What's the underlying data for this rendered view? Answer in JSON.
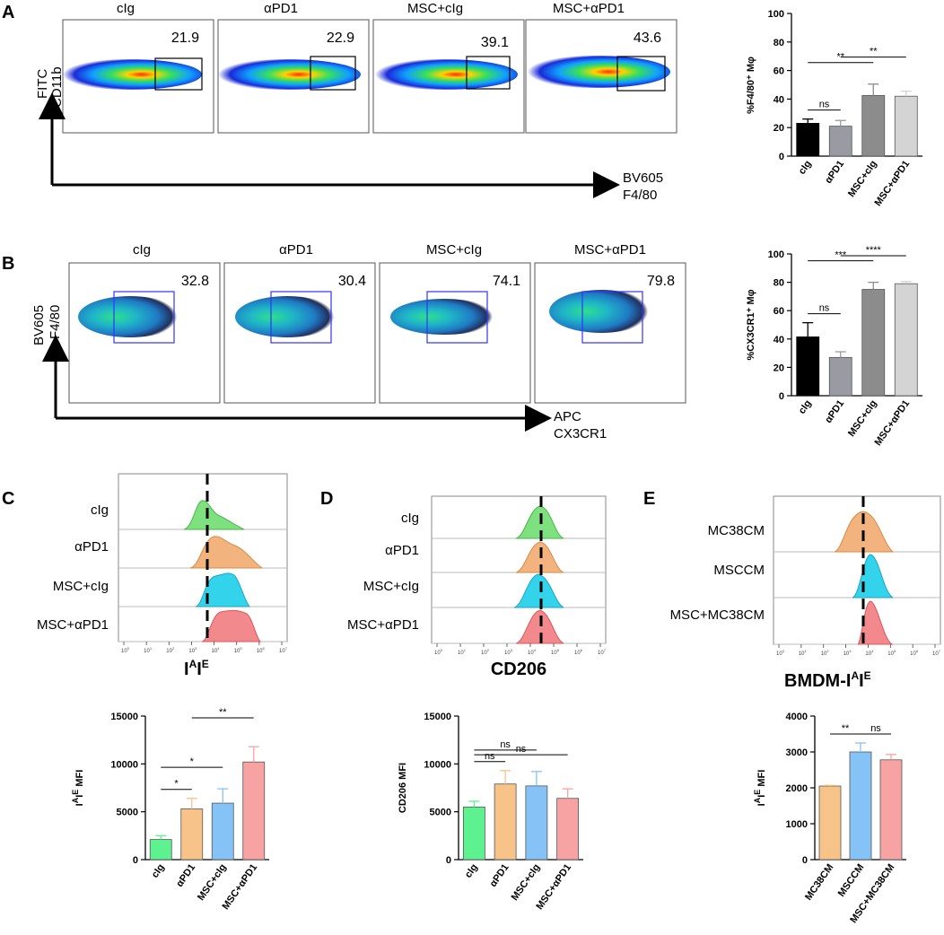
{
  "panel_labels": [
    "A",
    "B",
    "C",
    "D",
    "E"
  ],
  "colors": {
    "black": "#000000",
    "dark_gray": "#8c8c8c",
    "mid_gray": "#9a9aa3",
    "light_gray": "#d4d4d4",
    "green": "#5df28f",
    "orange": "#f8c389",
    "blue": "#85c3f7",
    "red": "#f7a3a3",
    "hist_green": "#7ee07e",
    "hist_orange": "#f2b37e",
    "hist_cyan": "#33d3ec",
    "hist_red": "#f2898c",
    "gate_A": "#000000",
    "gate_B": "#3333ff"
  },
  "flow_A": {
    "titles": [
      "cIg",
      "αPD1",
      "MSC+cIg",
      "MSC+αPD1"
    ],
    "percentages": [
      "21.9",
      "22.9",
      "39.1",
      "43.6"
    ],
    "y_axis": [
      "FITC",
      "CD11b"
    ],
    "x_axis": [
      "BV605",
      "F4/80"
    ]
  },
  "flow_B": {
    "titles": [
      "cIg",
      "αPD1",
      "MSC+cIg",
      "MSC+αPD1"
    ],
    "percentages": [
      "32.8",
      "30.4",
      "74.1",
      "79.8"
    ],
    "y_axis": [
      "BV605",
      "F4/80"
    ],
    "x_axis": [
      "APC",
      "CX3CR1"
    ]
  },
  "hist_C": {
    "rows": [
      "cIg",
      "αPD1",
      "MSC+cIg",
      "MSC+αPD1"
    ],
    "x_label": "I",
    "x_label_sup": "A",
    "x_label_mid": "I",
    "x_label_sup2": "E",
    "x_ticks": [
      "10",
      "10",
      "10",
      "10",
      "10",
      "10",
      "10",
      "10"
    ],
    "x_tick_exps": [
      "0",
      "1",
      "2",
      "3",
      "4",
      "5",
      "6",
      "7"
    ]
  },
  "hist_D": {
    "rows": [
      "cIg",
      "αPD1",
      "MSC+cIg",
      "MSC+αPD1"
    ],
    "x_label": "CD206",
    "x_ticks": [
      "10",
      "10",
      "10",
      "10",
      "10",
      "10",
      "10",
      "10"
    ],
    "x_tick_exps": [
      "0",
      "1",
      "2",
      "3",
      "4",
      "5",
      "6",
      "7"
    ]
  },
  "hist_E": {
    "rows": [
      "MC38CM",
      "MSCCM",
      "MSC+MC38CM"
    ],
    "x_label": "BMDM-I",
    "x_label_sup": "A",
    "x_label_mid": "I",
    "x_label_sup2": "E",
    "x_ticks": [
      "10",
      "10",
      "10",
      "10",
      "10",
      "10",
      "10",
      "10"
    ],
    "x_tick_exps": [
      "0",
      "1",
      "2",
      "3",
      "4",
      "5",
      "6",
      "7"
    ]
  },
  "chart_data": [
    {
      "id": "A_bar",
      "type": "bar",
      "title": "",
      "ylabel": "%F4/80⁺ Mφ",
      "categories": [
        "cIg",
        "αPD1",
        "MSC+cIg",
        "MSC+αPD1"
      ],
      "values": [
        23,
        21,
        42.5,
        42
      ],
      "errors": [
        3,
        4,
        8,
        3.5
      ],
      "ylim": [
        0,
        100
      ],
      "yticks": [
        0,
        20,
        40,
        60,
        80,
        100
      ],
      "colors": [
        "#000000",
        "#9a9aa3",
        "#8c8c8c",
        "#d4d4d4"
      ],
      "significance": [
        {
          "from": 0,
          "to": 1,
          "label": "ns",
          "level": 1
        },
        {
          "from": 0,
          "to": 2,
          "label": "**",
          "level": 2
        },
        {
          "from": 1,
          "to": 3,
          "label": "**",
          "level": 3
        }
      ]
    },
    {
      "id": "B_bar",
      "type": "bar",
      "title": "",
      "ylabel": "%CX3CR1⁺ Mφ",
      "categories": [
        "cIg",
        "αPD1",
        "MSC+cIg",
        "MSC+αPD1"
      ],
      "values": [
        41.5,
        27,
        75,
        79
      ],
      "errors": [
        10,
        4,
        5,
        1.5
      ],
      "ylim": [
        0,
        100
      ],
      "yticks": [
        0,
        20,
        40,
        60,
        80,
        100
      ],
      "colors": [
        "#000000",
        "#9a9aa3",
        "#8c8c8c",
        "#d4d4d4"
      ],
      "significance": [
        {
          "from": 0,
          "to": 1,
          "label": "ns",
          "level": 1
        },
        {
          "from": 0,
          "to": 2,
          "label": "***",
          "level": 2
        },
        {
          "from": 1,
          "to": 3,
          "label": "****",
          "level": 3
        }
      ]
    },
    {
      "id": "C_bar",
      "type": "bar",
      "title": "",
      "ylabel": "IAIE MFI",
      "categories": [
        "cIg",
        "αPD1",
        "MSC+cIg",
        "MSC+αPD1"
      ],
      "values": [
        2100,
        5300,
        5900,
        10200
      ],
      "errors": [
        400,
        1100,
        1500,
        1600
      ],
      "ylim": [
        0,
        15000
      ],
      "yticks": [
        0,
        5000,
        10000,
        15000
      ],
      "colors": [
        "#5df28f",
        "#f8c389",
        "#85c3f7",
        "#f7a3a3"
      ],
      "significance": [
        {
          "from": 0,
          "to": 1,
          "label": "*",
          "level": 1
        },
        {
          "from": 0,
          "to": 2,
          "label": "*",
          "level": 2
        },
        {
          "from": 1,
          "to": 3,
          "label": "**",
          "level": 3
        }
      ]
    },
    {
      "id": "D_bar",
      "type": "bar",
      "title": "",
      "ylabel": "CD206 MFI",
      "categories": [
        "cIg",
        "αPD1",
        "MSC+cIg",
        "MSC+αPD1"
      ],
      "values": [
        5500,
        7900,
        7700,
        6400
      ],
      "errors": [
        600,
        1400,
        1500,
        1000
      ],
      "ylim": [
        0,
        15000
      ],
      "yticks": [
        0,
        5000,
        10000,
        15000
      ],
      "colors": [
        "#5df28f",
        "#f8c389",
        "#85c3f7",
        "#f7a3a3"
      ],
      "significance": [
        {
          "from": 0,
          "to": 1,
          "label": "ns",
          "level": 1
        },
        {
          "from": 0,
          "to": 2,
          "label": "ns",
          "level": 2
        },
        {
          "from": 0,
          "to": 3,
          "label": "ns",
          "level": 3
        }
      ]
    },
    {
      "id": "E_bar",
      "type": "bar",
      "title": "",
      "ylabel": "IAIE MFI",
      "categories": [
        "MC38CM",
        "MSCCM",
        "MSC+MC38CM"
      ],
      "values": [
        2050,
        3000,
        2780
      ],
      "errors": [
        20,
        250,
        150
      ],
      "ylim": [
        0,
        4000
      ],
      "yticks": [
        0,
        1000,
        2000,
        3000,
        4000
      ],
      "colors": [
        "#f8c389",
        "#85c3f7",
        "#f7a3a3"
      ],
      "significance": [
        {
          "from": 0,
          "to": 1,
          "label": "**",
          "level": 1
        },
        {
          "from": 1,
          "to": 2,
          "label": "ns",
          "level": 1
        }
      ]
    }
  ]
}
